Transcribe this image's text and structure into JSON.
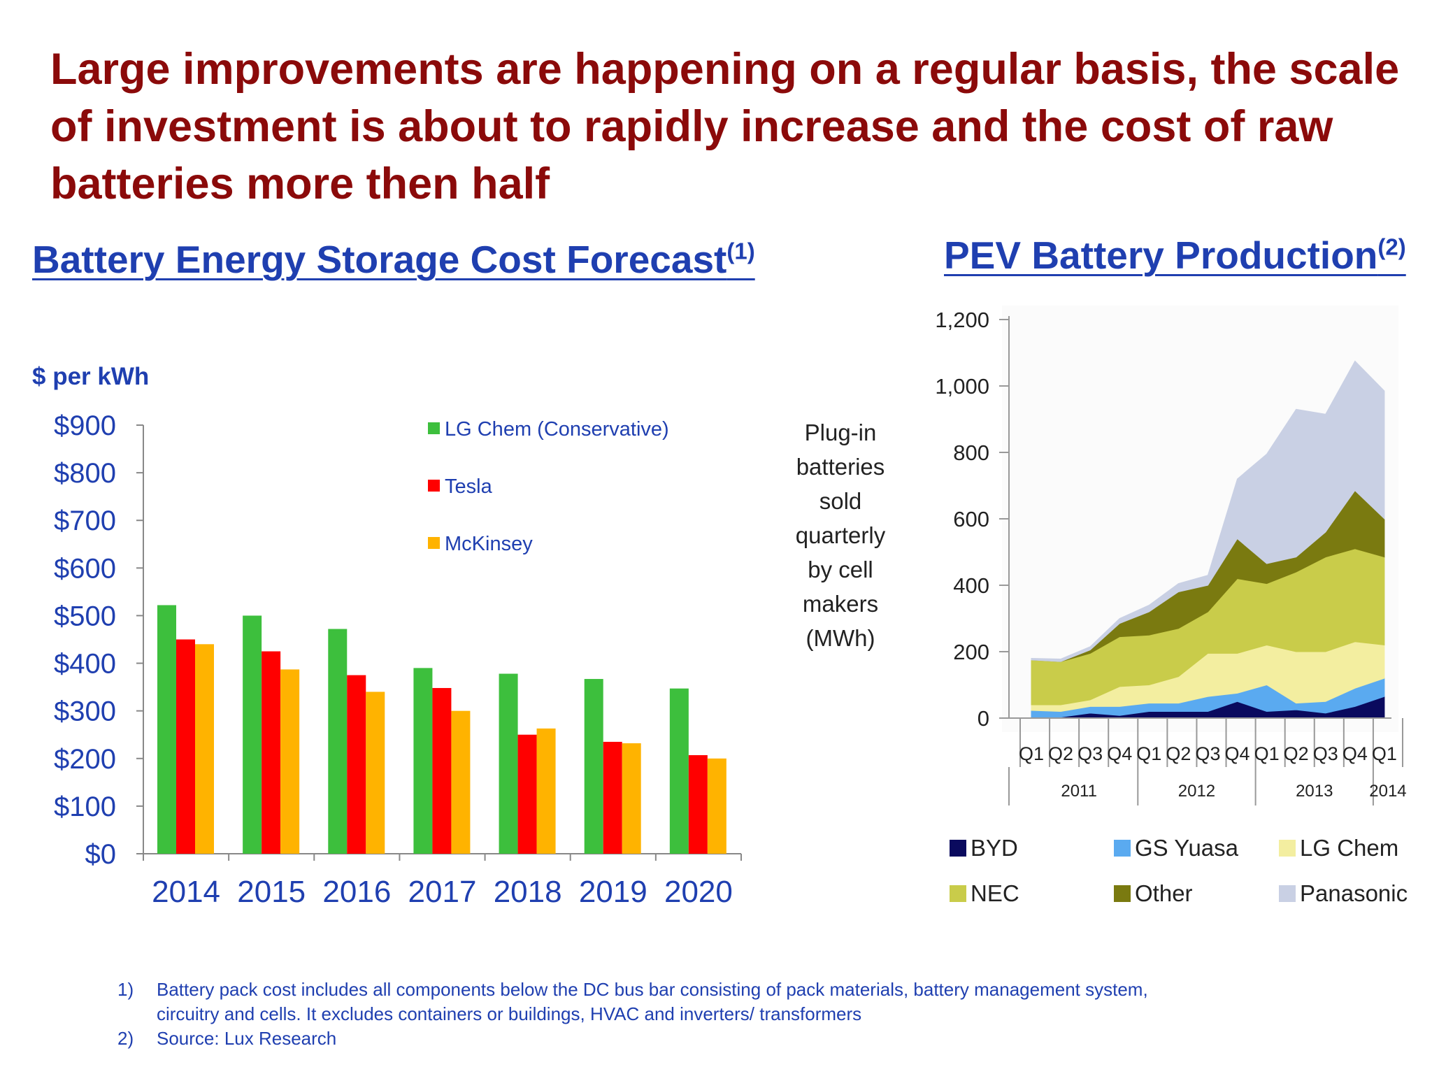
{
  "headline": "Large improvements are happening on a regular basis, the scale of investment is about to rapidly increase and the cost of raw batteries more then half",
  "left_title": {
    "text": "Battery Energy Storage Cost Forecast",
    "sup": "(1)"
  },
  "right_title": {
    "text": "PEV Battery Production",
    "sup": "(2)"
  },
  "footnotes": [
    {
      "num": "1)",
      "text": "Battery pack cost includes all components below the DC bus bar consisting of pack materials, battery management system, circuitry and cells. It excludes containers or buildings, HVAC and inverters/ transformers"
    },
    {
      "num": "2)",
      "text": "Source: Lux Research"
    }
  ],
  "chart_data": [
    {
      "type": "bar",
      "title": "Battery Energy Storage Cost Forecast",
      "ylabel": "$ per kWh",
      "categories": [
        "2014",
        "2015",
        "2016",
        "2017",
        "2018",
        "2019",
        "2020"
      ],
      "y_ticks": [
        "$0",
        "$100",
        "$200",
        "$300",
        "$400",
        "$500",
        "$600",
        "$700",
        "$800",
        "$900"
      ],
      "ylim": [
        0,
        900
      ],
      "legend_position": "top-center",
      "grid": false,
      "series": [
        {
          "name": "LG Chem (Conservative)",
          "color": "#3dbf3d",
          "values": [
            522,
            500,
            472,
            390,
            378,
            367,
            347
          ]
        },
        {
          "name": "Tesla",
          "color": "#ff0000",
          "values": [
            450,
            425,
            375,
            348,
            250,
            235,
            207
          ]
        },
        {
          "name": "McKinsey",
          "color": "#ffb300",
          "values": [
            440,
            387,
            340,
            300,
            263,
            232,
            200
          ]
        }
      ]
    },
    {
      "type": "area",
      "title": "PEV Battery Production",
      "ylabel": "Plug-in batteries sold quarterly by cell makers (MWh)",
      "ylabel_lines": [
        "Plug-in",
        "batteries",
        "sold",
        "quarterly",
        "by cell",
        "makers",
        "(MWh)"
      ],
      "y_ticks": [
        "0",
        "200",
        "400",
        "600",
        "800",
        "1,000",
        "1,200"
      ],
      "ylim": [
        0,
        1200
      ],
      "stacked": true,
      "grid": false,
      "legend_position": "bottom",
      "x": [
        "Q1",
        "Q2",
        "Q3",
        "Q4",
        "Q1",
        "Q2",
        "Q3",
        "Q4",
        "Q1",
        "Q2",
        "Q3",
        "Q4",
        "Q1"
      ],
      "year_groups": [
        {
          "label": "2011",
          "quarters": 4
        },
        {
          "label": "2012",
          "quarters": 4
        },
        {
          "label": "2013",
          "quarters": 4
        },
        {
          "label": "2014",
          "quarters": 1
        }
      ],
      "series": [
        {
          "name": "BYD",
          "color": "#0a0a5e",
          "values": [
            3,
            3,
            15,
            8,
            20,
            20,
            20,
            50,
            20,
            25,
            15,
            35,
            65
          ]
        },
        {
          "name": "GS Yuasa",
          "color": "#5aaaf0",
          "values": [
            20,
            17,
            20,
            27,
            25,
            25,
            45,
            25,
            80,
            20,
            35,
            55,
            55
          ]
        },
        {
          "name": "LG Chem",
          "color": "#f3eea0",
          "values": [
            17,
            20,
            20,
            60,
            55,
            80,
            130,
            120,
            120,
            155,
            150,
            140,
            100
          ]
        },
        {
          "name": "NEC",
          "color": "#c9cc4a",
          "values": [
            135,
            130,
            140,
            150,
            150,
            145,
            125,
            225,
            185,
            240,
            285,
            280,
            265
          ]
        },
        {
          "name": "Other",
          "color": "#7a7a10",
          "values": [
            0,
            0,
            10,
            40,
            70,
            110,
            80,
            120,
            60,
            45,
            75,
            175,
            115
          ]
        },
        {
          "name": "Panasonic",
          "color": "#c9d0e4",
          "values": [
            5,
            8,
            10,
            15,
            20,
            25,
            30,
            180,
            330,
            445,
            355,
            390,
            385
          ]
        }
      ]
    }
  ]
}
